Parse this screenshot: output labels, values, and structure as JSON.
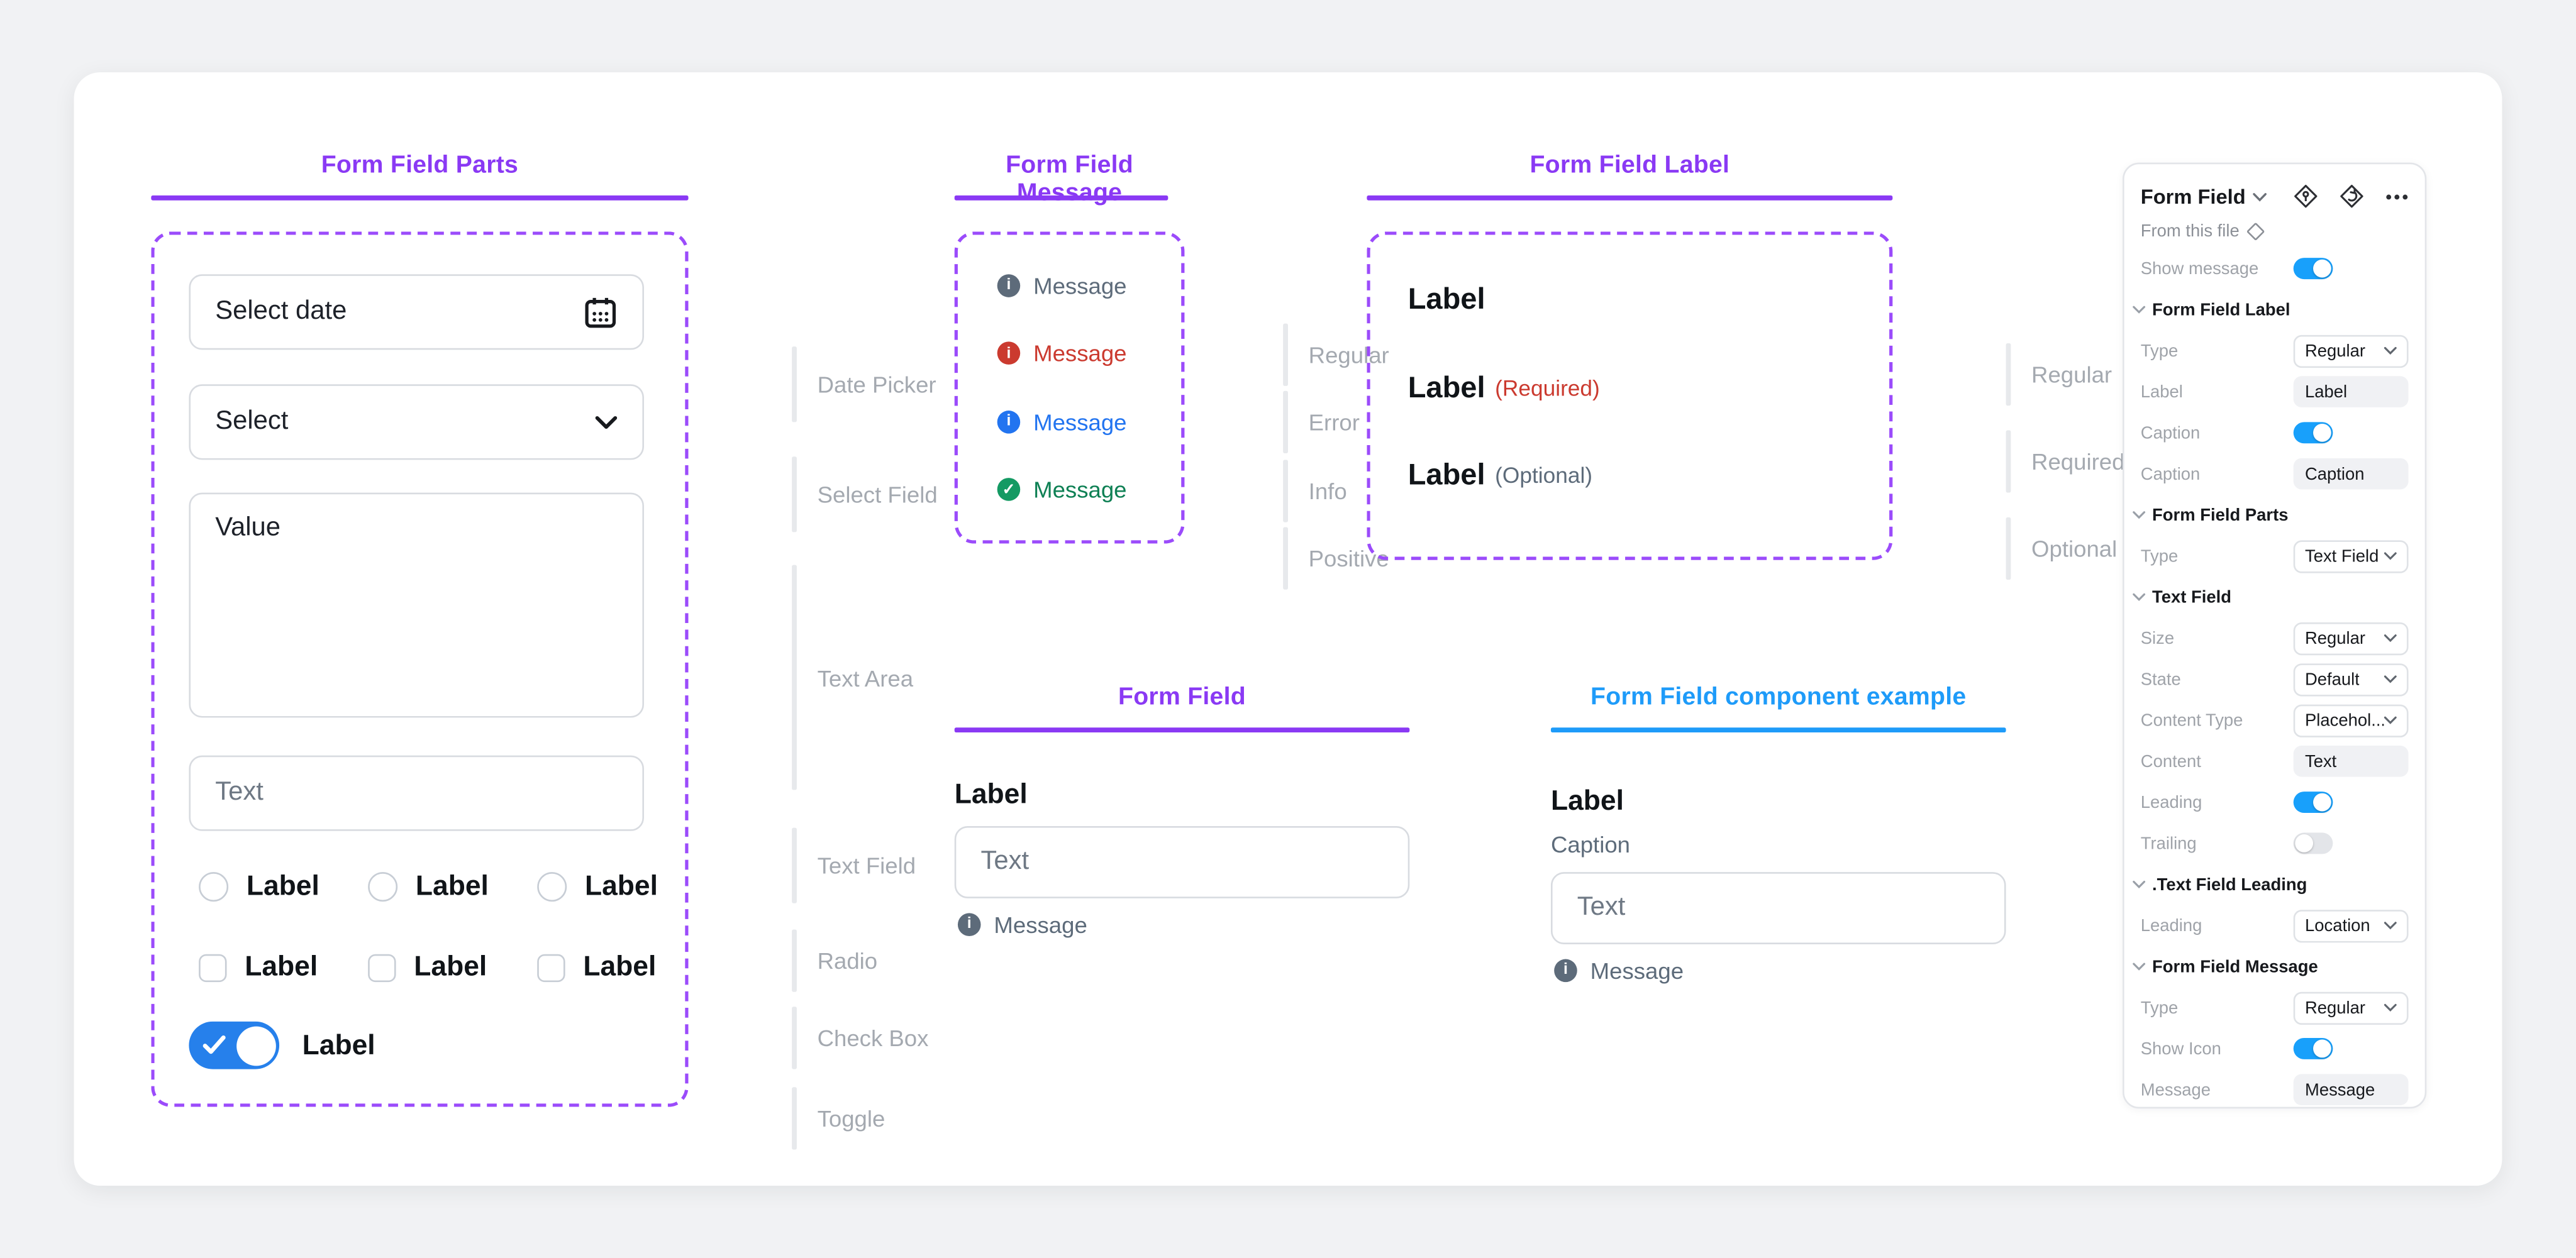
{
  "colors": {
    "purple": "#8a39f4",
    "dash": "#9b4bfb",
    "blue": "#1e9bf9",
    "toggle": "#2680eb",
    "paneltoggle": "#18a0fb",
    "slate": "#5d6b7a",
    "red": "#cb3a2f",
    "info": "#2274f0",
    "green_icon": "#149a63",
    "green_text": "#0e8054"
  },
  "canvas": {
    "parts": {
      "title": "Form Field Parts",
      "date_placeholder": "Select date",
      "select_placeholder": "Select",
      "textarea_value": "Value",
      "text_placeholder": "Text",
      "control_label": "Label",
      "side_labels": [
        "Date Picker",
        "Select Field",
        "Text Area",
        "Text Field",
        "Radio",
        "Check Box",
        "Toggle"
      ]
    },
    "message": {
      "title": "Form Field Message",
      "rows": [
        {
          "text": "Message",
          "kind": "regular"
        },
        {
          "text": "Message",
          "kind": "error"
        },
        {
          "text": "Message",
          "kind": "info"
        },
        {
          "text": "Message",
          "kind": "positive"
        }
      ],
      "side_labels": [
        "Regular",
        "Error",
        "Info",
        "Positive"
      ]
    },
    "label_section": {
      "title": "Form Field Label",
      "rows": [
        {
          "label": "Label",
          "suffix": "",
          "kind": "regular"
        },
        {
          "label": "Label",
          "suffix": "(Required)",
          "kind": "required"
        },
        {
          "label": "Label",
          "suffix": "(Optional)",
          "kind": "optional"
        }
      ],
      "side_labels": [
        "Regular",
        "Required",
        "Optional"
      ]
    },
    "form_field": {
      "title": "Form Field",
      "label": "Label",
      "text_placeholder": "Text",
      "message": "Message"
    },
    "example": {
      "title": "Form Field component example",
      "label": "Label",
      "caption": "Caption",
      "text_placeholder": "Text",
      "message": "Message"
    }
  },
  "panel": {
    "title": "Form Field",
    "source": "From this file",
    "rows": [
      {
        "type": "toggle",
        "label": "Show message",
        "on": true
      },
      {
        "type": "section",
        "label": "Form Field Label"
      },
      {
        "type": "select",
        "label": "Type",
        "value": "Regular"
      },
      {
        "type": "input",
        "label": "Label",
        "value": "Label"
      },
      {
        "type": "toggle",
        "label": "Caption",
        "on": true
      },
      {
        "type": "input",
        "label": "Caption",
        "value": "Caption"
      },
      {
        "type": "section",
        "label": "Form Field Parts"
      },
      {
        "type": "select",
        "label": "Type",
        "value": "Text Field"
      },
      {
        "type": "section",
        "label": "Text Field"
      },
      {
        "type": "select",
        "label": "Size",
        "value": "Regular"
      },
      {
        "type": "select",
        "label": "State",
        "value": "Default"
      },
      {
        "type": "select",
        "label": "Content Type",
        "value": "Placehol..."
      },
      {
        "type": "input",
        "label": "Content",
        "value": "Text"
      },
      {
        "type": "toggle",
        "label": "Leading",
        "on": true
      },
      {
        "type": "toggle",
        "label": "Trailing",
        "on": false
      },
      {
        "type": "section",
        "label": ".Text Field Leading"
      },
      {
        "type": "select",
        "label": "Leading",
        "value": "Location"
      },
      {
        "type": "section",
        "label": "Form Field Message"
      },
      {
        "type": "select",
        "label": "Type",
        "value": "Regular"
      },
      {
        "type": "toggle",
        "label": "Show Icon",
        "on": true
      },
      {
        "type": "input",
        "label": "Message",
        "value": "Message"
      }
    ]
  }
}
